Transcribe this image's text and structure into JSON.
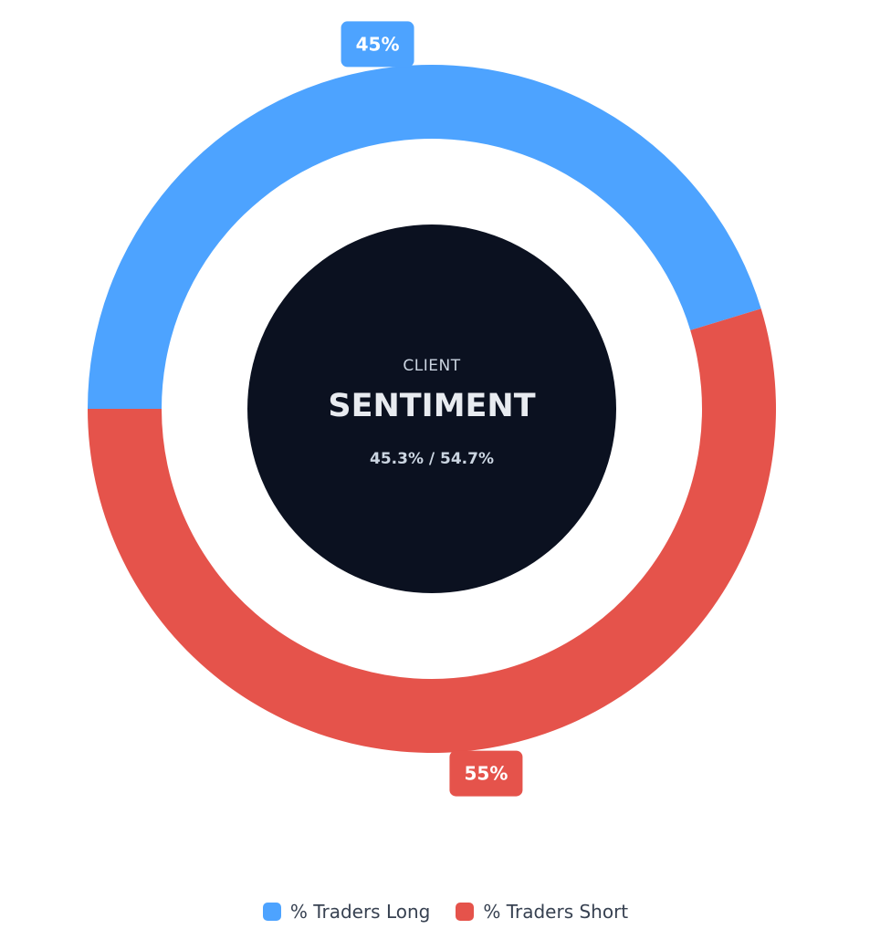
{
  "chart_data": {
    "type": "pie",
    "variant": "donut",
    "categories": [
      "% Traders Long",
      "% Traders Short"
    ],
    "values": [
      45.3,
      54.7
    ],
    "data_labels": [
      "45%",
      "55%"
    ],
    "colors": [
      "#4da3ff",
      "#e5534b"
    ],
    "legend_position": "bottom",
    "center": {
      "line1": "CLIENT",
      "line2": "SENTIMENT",
      "line3": "45.3% / 54.7%",
      "background": "#0b1120"
    }
  },
  "legend": {
    "items": [
      {
        "label": "% Traders Long",
        "color": "#4da3ff"
      },
      {
        "label": "% Traders Short",
        "color": "#e5534b"
      }
    ]
  }
}
